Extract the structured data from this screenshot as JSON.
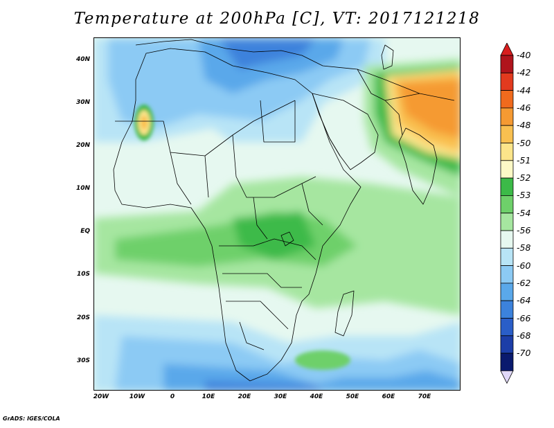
{
  "title": "Temperature at 200hPa [C], VT: 2017121218",
  "credit": "GrADS: IGES/COLA",
  "y_axis_labels": [
    "40N",
    "30N",
    "20N",
    "10N",
    "EQ",
    "10S",
    "20S",
    "30S"
  ],
  "x_axis_labels": [
    "20W",
    "10W",
    "0",
    "10E",
    "20E",
    "30E",
    "40E",
    "50E",
    "60E",
    "70E"
  ],
  "colorbar": {
    "labels": [
      "-40",
      "-42",
      "-44",
      "-46",
      "-48",
      "-50",
      "-51",
      "-52",
      "-53",
      "-54",
      "-56",
      "-58",
      "-60",
      "-62",
      "-64",
      "-66",
      "-68",
      "-70"
    ],
    "colors": [
      "#b0141c",
      "#e23a1e",
      "#f06a1d",
      "#f59a32",
      "#f9c050",
      "#fce58a",
      "#fdf9c6",
      "#3cba48",
      "#6ed06a",
      "#a6e6a0",
      "#e6f8f0",
      "#b8e4f6",
      "#8ccaf4",
      "#5aa8ea",
      "#3c82dc",
      "#2a5ec8",
      "#1c3ea8",
      "#0a1a6e"
    ],
    "top_arrow_color": "#d81e1e",
    "bottom_arrow_color": "#e0d8f8"
  }
}
